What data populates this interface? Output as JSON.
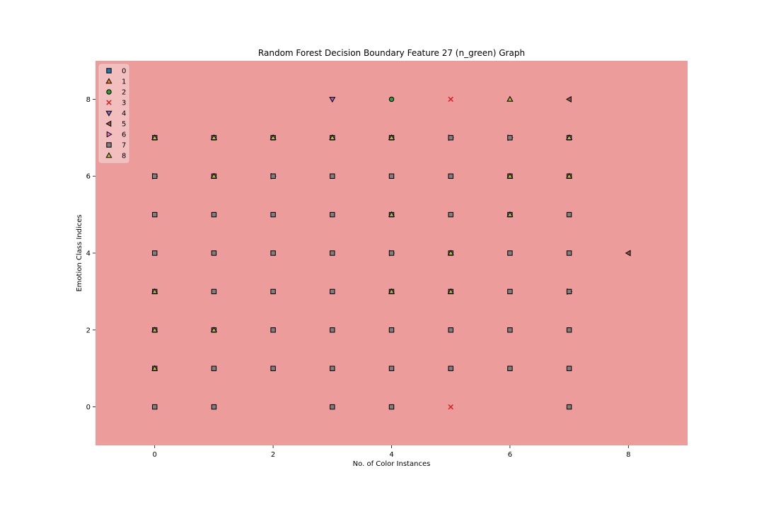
{
  "chart_data": {
    "type": "scatter",
    "title": "Random Forest Decision Boundary Feature 27 (n_green) Graph",
    "xlabel": "No. of Color Instances",
    "ylabel": "Emotion Class Indices",
    "xlim": [
      -1,
      9
    ],
    "ylim": [
      -1,
      9
    ],
    "xticks": [
      0,
      2,
      4,
      6,
      8
    ],
    "yticks": [
      0,
      2,
      4,
      6,
      8
    ],
    "background_region_color": "#ed9c9c",
    "legend_position": "upper-left",
    "classes": [
      {
        "label": "0",
        "marker": "square",
        "color": "#1f77b4"
      },
      {
        "label": "1",
        "marker": "triangle-up",
        "color": "#ff7f0e"
      },
      {
        "label": "2",
        "marker": "circle",
        "color": "#2ca02c"
      },
      {
        "label": "3",
        "marker": "x",
        "color": "#d62728"
      },
      {
        "label": "4",
        "marker": "triangle-down",
        "color": "#9467bd"
      },
      {
        "label": "5",
        "marker": "triangle-left",
        "color": "#8c564b"
      },
      {
        "label": "6",
        "marker": "triangle-right",
        "color": "#e377c2"
      },
      {
        "label": "7",
        "marker": "square",
        "color": "#7f7f7f"
      },
      {
        "label": "8",
        "marker": "triangle-up",
        "color": "#bcbd22"
      }
    ],
    "points": [
      {
        "x": 3,
        "y": 8,
        "c": 4
      },
      {
        "x": 4,
        "y": 8,
        "c": 2
      },
      {
        "x": 5,
        "y": 8,
        "c": 3
      },
      {
        "x": 6,
        "y": 8,
        "c": 1
      },
      {
        "x": 6,
        "y": 8,
        "c": 8
      },
      {
        "x": 7,
        "y": 8,
        "c": 5
      },
      {
        "x": 0,
        "y": 7,
        "c": 1
      },
      {
        "x": 0,
        "y": 7,
        "c": 7
      },
      {
        "x": 0,
        "y": 7,
        "c": 8
      },
      {
        "x": 1,
        "y": 7,
        "c": 1
      },
      {
        "x": 1,
        "y": 7,
        "c": 7
      },
      {
        "x": 1,
        "y": 7,
        "c": 8
      },
      {
        "x": 2,
        "y": 7,
        "c": 1
      },
      {
        "x": 2,
        "y": 7,
        "c": 7
      },
      {
        "x": 2,
        "y": 7,
        "c": 8
      },
      {
        "x": 3,
        "y": 7,
        "c": 1
      },
      {
        "x": 3,
        "y": 7,
        "c": 7
      },
      {
        "x": 3,
        "y": 7,
        "c": 8
      },
      {
        "x": 4,
        "y": 7,
        "c": 1
      },
      {
        "x": 4,
        "y": 7,
        "c": 7
      },
      {
        "x": 4,
        "y": 7,
        "c": 8
      },
      {
        "x": 5,
        "y": 7,
        "c": 6
      },
      {
        "x": 5,
        "y": 7,
        "c": 7
      },
      {
        "x": 6,
        "y": 7,
        "c": 6
      },
      {
        "x": 6,
        "y": 7,
        "c": 7
      },
      {
        "x": 7,
        "y": 7,
        "c": 1
      },
      {
        "x": 7,
        "y": 7,
        "c": 7
      },
      {
        "x": 7,
        "y": 7,
        "c": 8
      },
      {
        "x": 0,
        "y": 6,
        "c": 6
      },
      {
        "x": 0,
        "y": 6,
        "c": 7
      },
      {
        "x": 1,
        "y": 6,
        "c": 7
      },
      {
        "x": 1,
        "y": 6,
        "c": 8
      },
      {
        "x": 2,
        "y": 6,
        "c": 6
      },
      {
        "x": 2,
        "y": 6,
        "c": 7
      },
      {
        "x": 3,
        "y": 6,
        "c": 7
      },
      {
        "x": 4,
        "y": 6,
        "c": 7
      },
      {
        "x": 5,
        "y": 6,
        "c": 7
      },
      {
        "x": 6,
        "y": 6,
        "c": 7
      },
      {
        "x": 6,
        "y": 6,
        "c": 8
      },
      {
        "x": 7,
        "y": 6,
        "c": 7
      },
      {
        "x": 7,
        "y": 6,
        "c": 8
      },
      {
        "x": 0,
        "y": 5,
        "c": 7
      },
      {
        "x": 1,
        "y": 5,
        "c": 7
      },
      {
        "x": 2,
        "y": 5,
        "c": 7
      },
      {
        "x": 3,
        "y": 5,
        "c": 7
      },
      {
        "x": 4,
        "y": 5,
        "c": 7
      },
      {
        "x": 4,
        "y": 5,
        "c": 8
      },
      {
        "x": 5,
        "y": 5,
        "c": 7
      },
      {
        "x": 6,
        "y": 5,
        "c": 7
      },
      {
        "x": 6,
        "y": 5,
        "c": 8
      },
      {
        "x": 7,
        "y": 5,
        "c": 7
      },
      {
        "x": 0,
        "y": 4,
        "c": 3
      },
      {
        "x": 0,
        "y": 4,
        "c": 7
      },
      {
        "x": 1,
        "y": 4,
        "c": 7
      },
      {
        "x": 2,
        "y": 4,
        "c": 3
      },
      {
        "x": 2,
        "y": 4,
        "c": 7
      },
      {
        "x": 3,
        "y": 4,
        "c": 7
      },
      {
        "x": 4,
        "y": 4,
        "c": 6
      },
      {
        "x": 4,
        "y": 4,
        "c": 7
      },
      {
        "x": 5,
        "y": 4,
        "c": 7
      },
      {
        "x": 5,
        "y": 4,
        "c": 8
      },
      {
        "x": 6,
        "y": 4,
        "c": 7
      },
      {
        "x": 7,
        "y": 4,
        "c": 7
      },
      {
        "x": 8,
        "y": 4,
        "c": 5
      },
      {
        "x": 0,
        "y": 3,
        "c": 7
      },
      {
        "x": 0,
        "y": 3,
        "c": 8
      },
      {
        "x": 1,
        "y": 3,
        "c": 7
      },
      {
        "x": 2,
        "y": 3,
        "c": 7
      },
      {
        "x": 3,
        "y": 3,
        "c": 7
      },
      {
        "x": 4,
        "y": 3,
        "c": 7
      },
      {
        "x": 4,
        "y": 3,
        "c": 8
      },
      {
        "x": 5,
        "y": 3,
        "c": 7
      },
      {
        "x": 5,
        "y": 3,
        "c": 8
      },
      {
        "x": 6,
        "y": 3,
        "c": 3
      },
      {
        "x": 6,
        "y": 3,
        "c": 7
      },
      {
        "x": 7,
        "y": 3,
        "c": 6
      },
      {
        "x": 7,
        "y": 3,
        "c": 7
      },
      {
        "x": 0,
        "y": 2,
        "c": 7
      },
      {
        "x": 0,
        "y": 2,
        "c": 8
      },
      {
        "x": 1,
        "y": 2,
        "c": 7
      },
      {
        "x": 1,
        "y": 2,
        "c": 8
      },
      {
        "x": 2,
        "y": 2,
        "c": 7
      },
      {
        "x": 3,
        "y": 2,
        "c": 7
      },
      {
        "x": 4,
        "y": 2,
        "c": 7
      },
      {
        "x": 5,
        "y": 2,
        "c": 7
      },
      {
        "x": 6,
        "y": 2,
        "c": 7
      },
      {
        "x": 7,
        "y": 2,
        "c": 7
      },
      {
        "x": 0,
        "y": 1,
        "c": 7
      },
      {
        "x": 0,
        "y": 1,
        "c": 8
      },
      {
        "x": 1,
        "y": 1,
        "c": 7
      },
      {
        "x": 2,
        "y": 1,
        "c": 7
      },
      {
        "x": 3,
        "y": 1,
        "c": 7
      },
      {
        "x": 4,
        "y": 1,
        "c": 7
      },
      {
        "x": 5,
        "y": 1,
        "c": 7
      },
      {
        "x": 6,
        "y": 1,
        "c": 7
      },
      {
        "x": 7,
        "y": 1,
        "c": 7
      },
      {
        "x": 0,
        "y": 0,
        "c": 7
      },
      {
        "x": 1,
        "y": 0,
        "c": 7
      },
      {
        "x": 3,
        "y": 0,
        "c": 7
      },
      {
        "x": 4,
        "y": 0,
        "c": 7
      },
      {
        "x": 5,
        "y": 0,
        "c": 3
      },
      {
        "x": 7,
        "y": 0,
        "c": 7
      }
    ]
  }
}
